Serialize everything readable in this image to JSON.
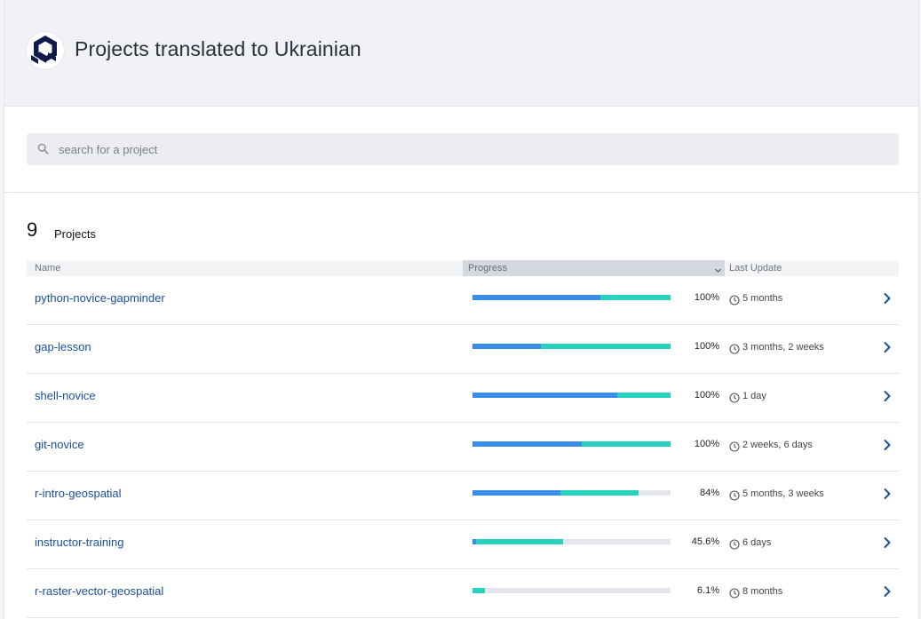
{
  "header": {
    "title": "Projects translated to Ukrainian",
    "logo_icon": "crowdin-hex-logo-icon"
  },
  "search": {
    "placeholder": "search for a project",
    "value": ""
  },
  "summary": {
    "count": "9",
    "label": "Projects"
  },
  "table": {
    "columns": {
      "name": "Name",
      "progress": "Progress",
      "last_update": "Last Update"
    },
    "rows": [
      {
        "name": "python-novice-gapminder",
        "approved": 64.6,
        "translated": 100,
        "percent": "100%",
        "updated": "5 months"
      },
      {
        "name": "gap-lesson",
        "approved": 34.5,
        "translated": 100,
        "percent": "100%",
        "updated": "3 months, 2 weeks"
      },
      {
        "name": "shell-novice",
        "approved": 73.1,
        "translated": 100,
        "percent": "100%",
        "updated": "1 day"
      },
      {
        "name": "git-novice",
        "approved": 55.2,
        "translated": 100,
        "percent": "100%",
        "updated": "2 weeks, 6 days"
      },
      {
        "name": "r-intro-geospatial",
        "approved": 44.4,
        "translated": 84,
        "percent": "84%",
        "updated": "5 months, 3 weeks"
      },
      {
        "name": "instructor-training",
        "approved": 1.8,
        "translated": 45.6,
        "percent": "45.6%",
        "updated": "6 days"
      },
      {
        "name": "r-raster-vector-geospatial",
        "approved": 0,
        "translated": 6.1,
        "percent": "6.1%",
        "updated": "8 months"
      }
    ]
  },
  "colors": {
    "approved": "#3a8ee8",
    "translated": "#29d1c0",
    "link": "#1b4f9c"
  }
}
